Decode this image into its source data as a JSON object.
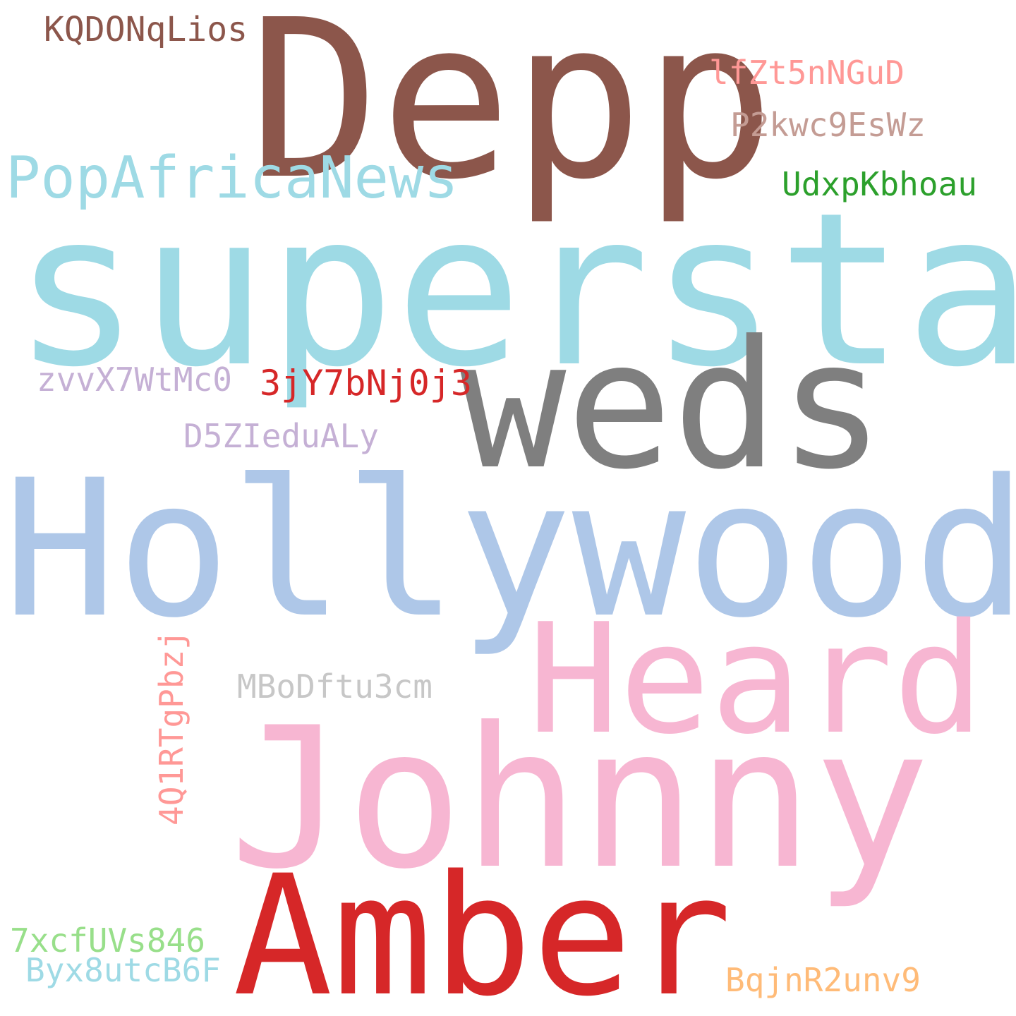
{
  "words": {
    "depp": {
      "text": "Depp",
      "color": "#8c564b"
    },
    "superstar": {
      "text": "superstar",
      "color": "#9edae5"
    },
    "weds": {
      "text": "weds",
      "color": "#7f7f7f"
    },
    "hollywood": {
      "text": "Hollywood",
      "color": "#aec7e8"
    },
    "heard": {
      "text": "Heard",
      "color": "#f7b6d2"
    },
    "johnny": {
      "text": "Johnny",
      "color": "#f7b6d2"
    },
    "amber": {
      "text": "Amber",
      "color": "#d62728"
    },
    "popafricanews": {
      "text": "PopAfricaNews",
      "color": "#9edae5"
    },
    "kqdonqlios": {
      "text": "KQDONqLios",
      "color": "#8c564b"
    },
    "lfzt5nngud": {
      "text": "lfZt5nNGuD",
      "color": "#ff9896"
    },
    "p2kwc9eswz": {
      "text": "P2kwc9EsWz",
      "color": "#c49c94"
    },
    "udxpkbhoau": {
      "text": "UdxpKbhoau",
      "color": "#2ca02c"
    },
    "zvvx7wtmc0": {
      "text": "zvvX7WtMc0",
      "color": "#c5b0d5"
    },
    "3jy7bnj0j3": {
      "text": "3jY7bNj0j3",
      "color": "#d62728"
    },
    "d5zieduALy": {
      "text": "D5ZIeduALy",
      "color": "#c5b0d5"
    },
    "mbodftu3cm": {
      "text": "MBoDftu3cm",
      "color": "#c7c7c7"
    },
    "4q1rtgpbzj": {
      "text": "4Q1RTgPbzj",
      "color": "#ff9896"
    },
    "7xcfuvs846": {
      "text": "7xcfUVs846",
      "color": "#98df8a"
    },
    "byx8utcb6f": {
      "text": "Byx8utcB6F",
      "color": "#9edae5"
    },
    "bqjnr2unv9": {
      "text": "BqjnR2unv9",
      "color": "#ffbb78"
    }
  }
}
